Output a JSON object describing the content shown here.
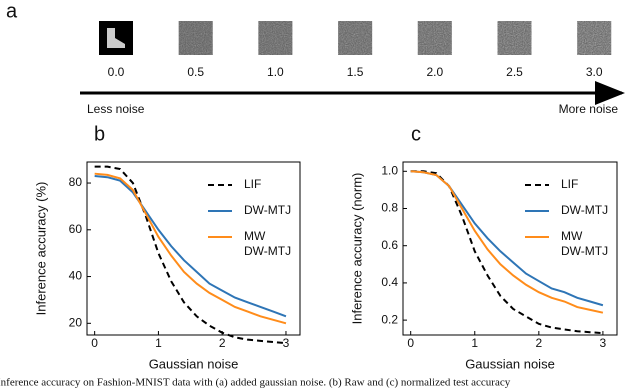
{
  "panel_a": {
    "label": "a",
    "noise_levels": [
      "0.0",
      "0.5",
      "1.0",
      "1.5",
      "2.0",
      "2.5",
      "3.0"
    ],
    "left_label": "Less noise",
    "right_label": "More noise"
  },
  "chart_data": [
    {
      "type": "line",
      "panel": "b",
      "xlabel": "Gaussian noise",
      "ylabel": "Inference accuracy (%)",
      "x": [
        0,
        0.2,
        0.4,
        0.6,
        0.8,
        1.0,
        1.2,
        1.4,
        1.6,
        1.8,
        2.0,
        2.2,
        2.4,
        2.6,
        2.8,
        3.0
      ],
      "xlim": [
        -0.12,
        3.22
      ],
      "xticks": [
        0,
        1,
        2,
        3
      ],
      "ylim": [
        15,
        89
      ],
      "yticks": [
        20,
        40,
        60,
        80
      ],
      "legend": "upper right",
      "series": [
        {
          "name": "LIF",
          "color": "#000000",
          "dash": true,
          "values": [
            87,
            87,
            86,
            80,
            66,
            50,
            38,
            29,
            23,
            19,
            16,
            14,
            13,
            12.5,
            12,
            11.5
          ]
        },
        {
          "name": "DW-MTJ",
          "color": "#2e75b6",
          "values": [
            83,
            82.5,
            81,
            76,
            68,
            60,
            53,
            47,
            42,
            37,
            34,
            31,
            29,
            27,
            25,
            23
          ]
        },
        {
          "name": "MW DW-MTJ",
          "color": "#ff8c1a",
          "values": [
            84,
            83.5,
            82,
            77,
            67,
            57,
            49,
            42,
            37,
            33,
            30,
            27,
            25,
            23,
            21.5,
            20
          ]
        }
      ]
    },
    {
      "type": "line",
      "panel": "c",
      "xlabel": "Gaussian noise",
      "ylabel": "Inference accuracy (norm)",
      "x": [
        0,
        0.2,
        0.4,
        0.6,
        0.8,
        1.0,
        1.2,
        1.4,
        1.6,
        1.8,
        2.0,
        2.2,
        2.4,
        2.6,
        2.8,
        3.0
      ],
      "xlim": [
        -0.12,
        3.22
      ],
      "xticks": [
        0,
        1,
        2,
        3
      ],
      "ylim": [
        0.12,
        1.05
      ],
      "yticks": [
        0.2,
        0.4,
        0.6,
        0.8,
        {
          "value": 1,
          "label": "1.0"
        }
      ],
      "legend": "upper right",
      "series": [
        {
          "name": "LIF",
          "color": "#000000",
          "dash": true,
          "values": [
            1,
            1,
            0.99,
            0.92,
            0.76,
            0.57,
            0.44,
            0.33,
            0.26,
            0.22,
            0.18,
            0.16,
            0.15,
            0.14,
            0.135,
            0.13
          ]
        },
        {
          "name": "DW-MTJ",
          "color": "#2e75b6",
          "values": [
            1,
            0.995,
            0.98,
            0.92,
            0.82,
            0.72,
            0.64,
            0.57,
            0.51,
            0.45,
            0.41,
            0.37,
            0.35,
            0.32,
            0.3,
            0.28
          ]
        },
        {
          "name": "MW DW-MTJ",
          "color": "#ff8c1a",
          "values": [
            1,
            0.995,
            0.98,
            0.92,
            0.8,
            0.68,
            0.58,
            0.5,
            0.44,
            0.39,
            0.35,
            0.32,
            0.3,
            0.27,
            0.255,
            0.24
          ]
        }
      ]
    }
  ],
  "caption": "Inference accuracy on Fashion-MNIST data with (a) added gaussian noise. (b) Raw and (c) normalized test accuracy"
}
